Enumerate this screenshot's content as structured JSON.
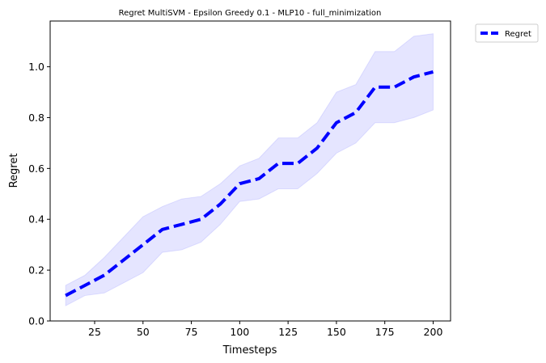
{
  "chart_data": {
    "type": "line",
    "title": "Regret MultiSVM - Epsilon Greedy 0.1 - MLP10 - full_minimization",
    "xlabel": "Timesteps",
    "ylabel": "Regret",
    "xlim": [
      2,
      209
    ],
    "ylim": [
      0,
      1.18
    ],
    "xticks": [
      25,
      50,
      75,
      100,
      125,
      150,
      175,
      200
    ],
    "yticks": [
      0.0,
      0.2,
      0.4,
      0.6,
      0.8,
      1.0
    ],
    "xtick_labels": [
      "25",
      "50",
      "75",
      "100",
      "125",
      "150",
      "175",
      "200"
    ],
    "ytick_labels": [
      "0.0",
      "0.2",
      "0.4",
      "0.6",
      "0.8",
      "1.0"
    ],
    "grid": false,
    "legend_position": "outside-top-right",
    "x": [
      10,
      20,
      30,
      40,
      50,
      60,
      70,
      80,
      90,
      100,
      110,
      120,
      130,
      140,
      150,
      160,
      170,
      180,
      190,
      200
    ],
    "series": [
      {
        "name": "Regret",
        "color": "#0000ff",
        "line_style": "dashed",
        "values": [
          0.1,
          0.14,
          0.18,
          0.24,
          0.3,
          0.36,
          0.38,
          0.4,
          0.46,
          0.54,
          0.56,
          0.62,
          0.62,
          0.68,
          0.78,
          0.82,
          0.92,
          0.92,
          0.96,
          0.98
        ],
        "lower": [
          0.06,
          0.1,
          0.11,
          0.15,
          0.19,
          0.27,
          0.28,
          0.31,
          0.38,
          0.47,
          0.48,
          0.52,
          0.52,
          0.58,
          0.66,
          0.7,
          0.78,
          0.78,
          0.8,
          0.83
        ],
        "upper": [
          0.14,
          0.18,
          0.25,
          0.33,
          0.41,
          0.45,
          0.48,
          0.49,
          0.54,
          0.61,
          0.64,
          0.72,
          0.72,
          0.78,
          0.9,
          0.93,
          1.06,
          1.06,
          1.12,
          1.13
        ],
        "band_color": "#0000ff"
      }
    ]
  }
}
